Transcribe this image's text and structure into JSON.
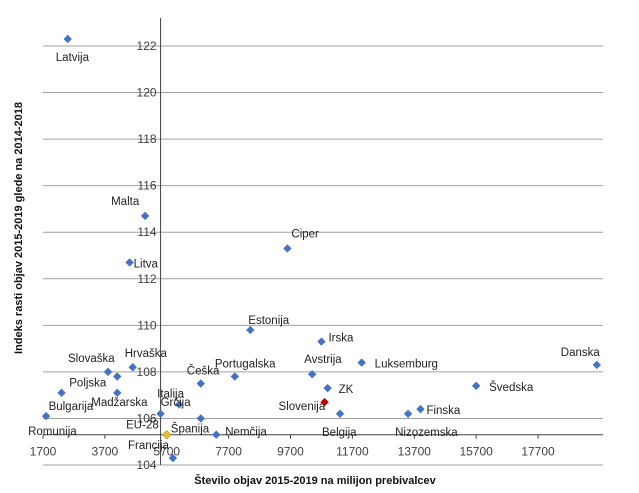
{
  "chart_data": {
    "type": "scatter",
    "xlabel": "Število objav 2015-2019 na milijon prebivalcev",
    "ylabel": "Indeks rasti objav 2015-2019 glede na 2014-2018",
    "xlim": [
      1700,
      19800
    ],
    "ylim": [
      104,
      123.2
    ],
    "x_cross_at_y": 105.3,
    "y_axis_at_x": 5500,
    "x_ticks": [
      1700,
      3700,
      5700,
      7700,
      9700,
      11700,
      13700,
      15700,
      17700
    ],
    "y_ticks": [
      104,
      106,
      108,
      110,
      112,
      114,
      116,
      118,
      120,
      122
    ],
    "grid": "horizontal",
    "colors": {
      "default": "#4472C4",
      "highlight": "#C00000",
      "eu": "#E8C33A"
    },
    "points": [
      {
        "label": "Latvija",
        "x": 2500,
        "y": 122.3
      },
      {
        "label": "Malta",
        "x": 5000,
        "y": 114.7
      },
      {
        "label": "Litva",
        "x": 4500,
        "y": 112.7
      },
      {
        "label": "Ciper",
        "x": 9600,
        "y": 113.3
      },
      {
        "label": "Estonija",
        "x": 8400,
        "y": 109.8
      },
      {
        "label": "Irska",
        "x": 10700,
        "y": 109.3
      },
      {
        "label": "Hrvaška",
        "x": 4600,
        "y": 108.2
      },
      {
        "label": "Slovaška",
        "x": 3800,
        "y": 108.0
      },
      {
        "label": "Poljska",
        "x": 4100,
        "y": 107.8
      },
      {
        "label": "Češka",
        "x": 6800,
        "y": 107.5
      },
      {
        "label": "Portugalska",
        "x": 7900,
        "y": 107.8
      },
      {
        "label": "Avstrija",
        "x": 10400,
        "y": 107.9
      },
      {
        "label": "Luksemburg",
        "x": 12000,
        "y": 108.4
      },
      {
        "label": "Danska",
        "x": 19600,
        "y": 108.3
      },
      {
        "label": "Švedska",
        "x": 15700,
        "y": 107.4
      },
      {
        "label": "Bulgarija",
        "x": 2300,
        "y": 107.1
      },
      {
        "label": "Madžarska",
        "x": 4100,
        "y": 107.1
      },
      {
        "label": "ZK",
        "x": 10900,
        "y": 107.3
      },
      {
        "label": "Slovenija",
        "x": 10800,
        "y": 106.7,
        "highlight": true
      },
      {
        "label": "Italija",
        "x": 6100,
        "y": 106.6
      },
      {
        "label": "Grčija",
        "x": 5500,
        "y": 106.2
      },
      {
        "label": "Španija",
        "x": 6800,
        "y": 106.0
      },
      {
        "label": "Romunija",
        "x": 1800,
        "y": 106.1
      },
      {
        "label": "Belgija",
        "x": 11300,
        "y": 106.2
      },
      {
        "label": "Nizozemska",
        "x": 13500,
        "y": 106.2
      },
      {
        "label": "Finska",
        "x": 13900,
        "y": 106.4
      },
      {
        "label": "EU-28",
        "x": 5700,
        "y": 105.3,
        "eu": true
      },
      {
        "label": "Nemčija",
        "x": 7300,
        "y": 105.3
      },
      {
        "label": "Francija",
        "x": 5900,
        "y": 104.3
      }
    ]
  }
}
